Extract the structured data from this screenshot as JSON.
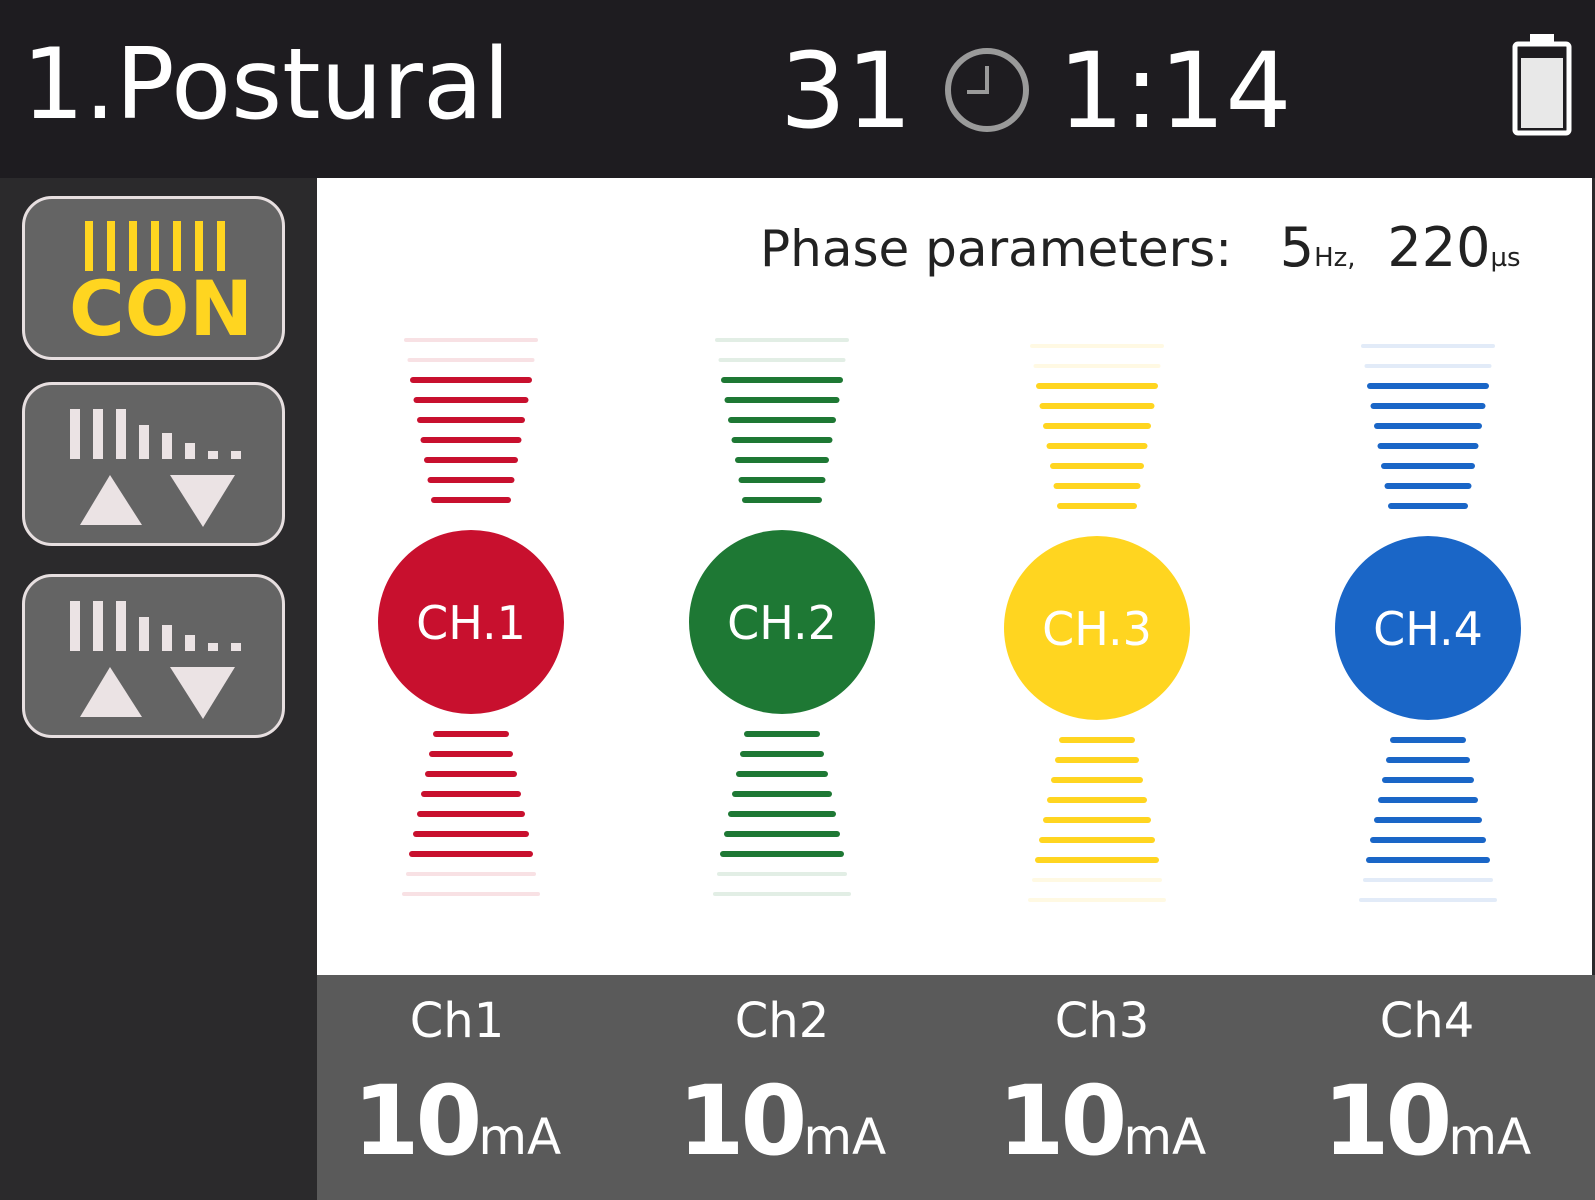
{
  "header": {
    "title": "1.Postural",
    "counter": "31",
    "time": "1:14",
    "clock_icon": "clock-icon",
    "battery_icon": "battery-icon",
    "battery_level": 0.85
  },
  "sidebar": {
    "buttons": [
      {
        "label": "CON",
        "icon": "continuous-mode-icon",
        "color": "#ffd520"
      },
      {
        "icon": "intensity-up-down-icon"
      },
      {
        "icon": "intensity-up-down-icon"
      }
    ]
  },
  "main": {
    "phase_label": "Phase parameters:",
    "frequency": "5",
    "frequency_unit": "Hz",
    "separator": ",",
    "pulse_width": "220",
    "pulse_width_unit": "µs",
    "channels": [
      {
        "label": "CH.1",
        "color": "#c8102e"
      },
      {
        "label": "CH.2",
        "color": "#1e7834"
      },
      {
        "label": "CH.3",
        "color": "#ffd520"
      },
      {
        "label": "CH.4",
        "color": "#1a66c7"
      }
    ]
  },
  "bottom": {
    "channels": [
      {
        "name": "Ch1",
        "value": "10",
        "unit": "mA"
      },
      {
        "name": "Ch2",
        "value": "10",
        "unit": "mA"
      },
      {
        "name": "Ch3",
        "value": "10",
        "unit": "mA"
      },
      {
        "name": "Ch4",
        "value": "10",
        "unit": "mA"
      }
    ]
  }
}
